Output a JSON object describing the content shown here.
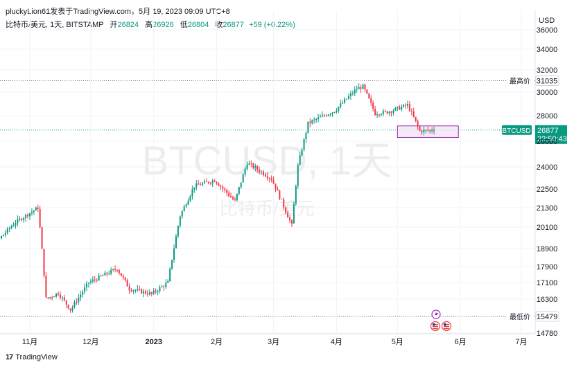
{
  "header": {
    "topline": "pluckyLion61发表于TradingView.com，5月 19, 2023 09:09 UTC+8",
    "symbol_line": "比特币/美元, 1天, BITSTAMP",
    "open_label": "开",
    "open": "26824",
    "high_label": "高",
    "high": "26926",
    "low_label": "低",
    "low": "26804",
    "close_label": "收",
    "close": "26877",
    "change": "+59 (+0.22%)"
  },
  "watermark": {
    "line1": "BTCUSD, 1天",
    "line2": "比特币/美元"
  },
  "brand": {
    "name": "TradingView",
    "logo": "17"
  },
  "colors": {
    "up": "#089981",
    "down": "#f23645",
    "zone_border": "#9c27b0",
    "zone_fill": "#f3e5f5"
  },
  "chart_data": {
    "type": "candlestick",
    "unit": "USD",
    "y_ticks": [
      36000,
      34000,
      32000,
      30000,
      28000,
      26000,
      24000,
      22500,
      21300,
      20100,
      18900,
      17900,
      17100,
      16300,
      15479,
      14780
    ],
    "x_ticks": [
      {
        "label": "11月",
        "date": "2022-11-01"
      },
      {
        "label": "12月",
        "date": "2022-12-01"
      },
      {
        "label": "2023",
        "date": "2023-01-01"
      },
      {
        "label": "2月",
        "date": "2023-02-01"
      },
      {
        "label": "3月",
        "date": "2023-03-01"
      },
      {
        "label": "4月",
        "date": "2023-04-01"
      },
      {
        "label": "5月",
        "date": "2023-05-01"
      },
      {
        "label": "6月",
        "date": "2023-06-01"
      },
      {
        "label": "7月",
        "date": "2023-07-01"
      }
    ],
    "price_lines": [
      {
        "label": "最高价",
        "value": "31035"
      },
      {
        "label": "最低价",
        "value": "15479"
      }
    ],
    "current": {
      "symbol": "BTCUSD",
      "price": "26877",
      "countdown": "22:50:43"
    },
    "zone": {
      "start": "2023-05-01",
      "end": "2023-05-31",
      "low": 26300,
      "high": 27200
    },
    "key_points": [
      {
        "date": "2022-10-01",
        "close": 19300
      },
      {
        "date": "2022-10-15",
        "close": 19200
      },
      {
        "date": "2022-10-25",
        "close": 20400
      },
      {
        "date": "2022-11-05",
        "close": 21300
      },
      {
        "date": "2022-11-09",
        "close": 16300
      },
      {
        "date": "2022-11-15",
        "close": 16600
      },
      {
        "date": "2022-11-21",
        "close": 15800
      },
      {
        "date": "2022-11-30",
        "close": 17100
      },
      {
        "date": "2022-12-14",
        "close": 17800
      },
      {
        "date": "2022-12-20",
        "close": 16800
      },
      {
        "date": "2022-12-31",
        "close": 16550
      },
      {
        "date": "2023-01-08",
        "close": 17100
      },
      {
        "date": "2023-01-14",
        "close": 20800
      },
      {
        "date": "2023-01-21",
        "close": 22700
      },
      {
        "date": "2023-01-31",
        "close": 23100
      },
      {
        "date": "2023-02-10",
        "close": 21700
      },
      {
        "date": "2023-02-16",
        "close": 24300
      },
      {
        "date": "2023-02-28",
        "close": 23200
      },
      {
        "date": "2023-03-10",
        "close": 20200
      },
      {
        "date": "2023-03-13",
        "close": 24100
      },
      {
        "date": "2023-03-18",
        "close": 27400
      },
      {
        "date": "2023-03-31",
        "close": 28400
      },
      {
        "date": "2023-04-11",
        "close": 30300
      },
      {
        "date": "2023-04-14",
        "close": 30500
      },
      {
        "date": "2023-04-20",
        "close": 28200
      },
      {
        "date": "2023-04-26",
        "close": 28300
      },
      {
        "date": "2023-05-06",
        "close": 28900
      },
      {
        "date": "2023-05-12",
        "close": 26800
      },
      {
        "date": "2023-05-19",
        "close": 26877
      }
    ]
  }
}
